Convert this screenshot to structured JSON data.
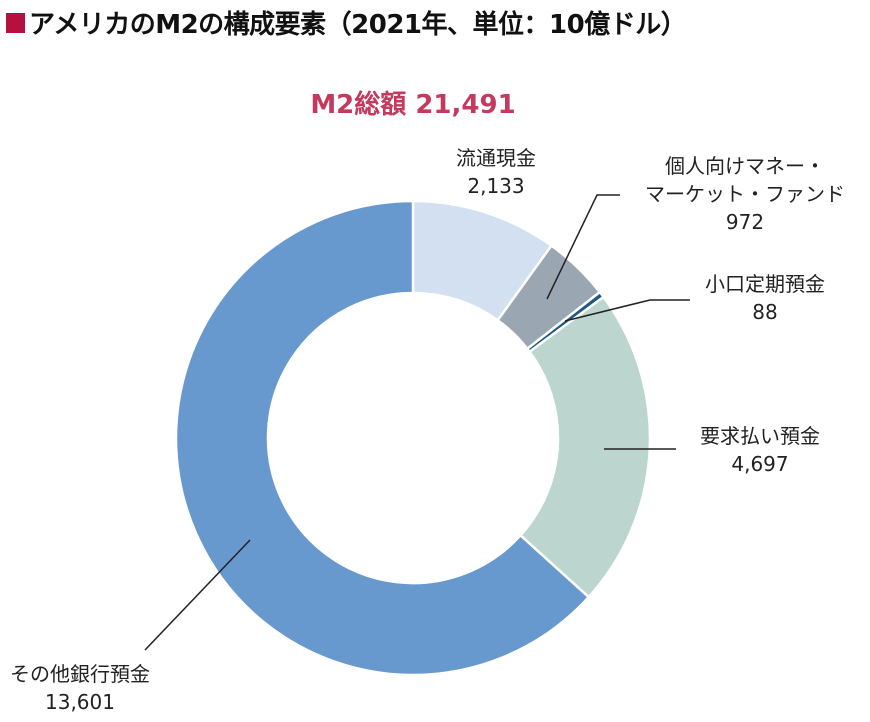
{
  "title": {
    "marker_color": "#b5103e",
    "text": "アメリカのM2の構成要素（2021年、単位：10億ドル）"
  },
  "total": {
    "text": "M2総額 21,491",
    "color": "#c33a5e"
  },
  "labels": [
    {
      "name": "流通現金",
      "value": "2,133"
    },
    {
      "name1": "個人向けマネー・",
      "name2": "マーケット・ファンド",
      "value": "972"
    },
    {
      "name": "小口定期預金",
      "value": "88"
    },
    {
      "name": "要求払い預金",
      "value": "4,697"
    },
    {
      "name": "その他銀行預金",
      "value": "13,601"
    }
  ],
  "chart_data": {
    "type": "pie",
    "variant": "donut",
    "title": "アメリカのM2の構成要素（2021年、単位：10億ドル）",
    "subtitle": "M2総額 21,491",
    "unit": "10億ドル",
    "total": 21491,
    "start_angle": "12 o'clock",
    "direction": "clockwise",
    "categories": [
      "流通現金",
      "個人向けマネー・マーケット・ファンド",
      "小口定期預金",
      "要求払い預金",
      "その他銀行預金"
    ],
    "values": [
      2133,
      972,
      88,
      4697,
      13601
    ],
    "colors": [
      "#d3e0f2",
      "#9aa7b2",
      "#1f5a85",
      "#bcd6cf",
      "#6799cf"
    ],
    "legend": "none (leader-line labels)"
  }
}
